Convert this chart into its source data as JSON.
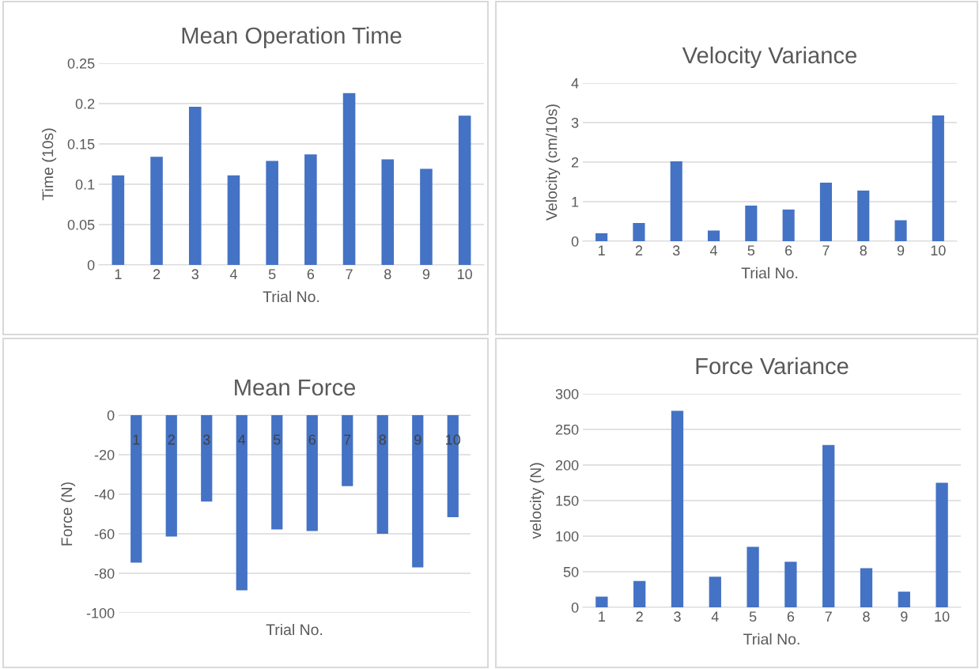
{
  "chart_data": [
    {
      "type": "bar",
      "title": "Mean Operation Time",
      "xlabel": "Trial No.",
      "ylabel": "Time (10s)",
      "categories": [
        "1",
        "2",
        "3",
        "4",
        "5",
        "6",
        "7",
        "8",
        "9",
        "10"
      ],
      "series": [
        {
          "color": "#4472c4",
          "values": [
            0.111,
            0.134,
            0.196,
            0.111,
            0.129,
            0.137,
            0.213,
            0.131,
            0.119,
            0.185
          ]
        }
      ],
      "ylim": [
        0,
        0.25
      ],
      "yticks": [
        0,
        0.05,
        0.1,
        0.15,
        0.2,
        0.25
      ],
      "grid": "y"
    },
    {
      "type": "bar",
      "title": "Velocity Variance",
      "xlabel": "Trial No.",
      "ylabel": "Velocity (cm/10s)",
      "categories": [
        "1",
        "2",
        "3",
        "4",
        "5",
        "6",
        "7",
        "8",
        "9",
        "10"
      ],
      "series": [
        {
          "color": "#4472c4",
          "values": [
            0.2,
            0.46,
            2.02,
            0.27,
            0.9,
            0.8,
            1.48,
            1.28,
            0.53,
            3.18
          ]
        }
      ],
      "ylim": [
        0,
        4
      ],
      "yticks": [
        0,
        1,
        2,
        3,
        4
      ],
      "grid": "y"
    },
    {
      "type": "bar",
      "title": "Mean Force",
      "xlabel": "Trial No.",
      "ylabel": "Force (N)",
      "categories": [
        "1",
        "2",
        "3",
        "4",
        "5",
        "6",
        "7",
        "8",
        "9",
        "10"
      ],
      "series": [
        {
          "color": "#4472c4",
          "values": [
            -74.6,
            -61.4,
            -43.7,
            -88.6,
            -57.8,
            -58.6,
            -35.9,
            -60,
            -77,
            -51.6
          ]
        }
      ],
      "ylim": [
        -100,
        0
      ],
      "yticks": [
        -100,
        -80,
        -60,
        -40,
        -20,
        0
      ],
      "grid": "y"
    },
    {
      "type": "bar",
      "title": "Force Variance",
      "xlabel": "Trial No.",
      "ylabel": "velocity (N)",
      "categories": [
        "1",
        "2",
        "3",
        "4",
        "5",
        "6",
        "7",
        "8",
        "9",
        "10"
      ],
      "series": [
        {
          "color": "#4472c4",
          "values": [
            15,
            37,
            276,
            43,
            85,
            64,
            228,
            55,
            22,
            175
          ]
        }
      ],
      "ylim": [
        0,
        300
      ],
      "yticks": [
        0,
        50,
        100,
        150,
        200,
        250,
        300
      ],
      "grid": "y"
    }
  ]
}
